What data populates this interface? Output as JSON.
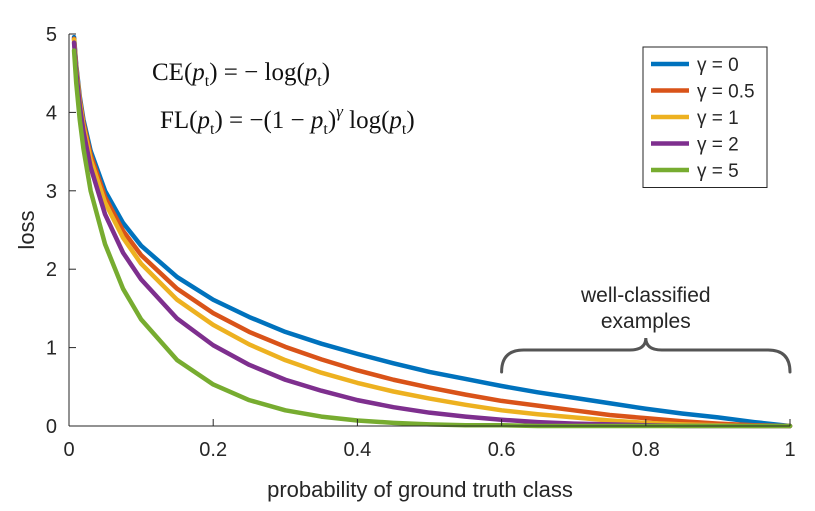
{
  "chart_data": {
    "type": "line",
    "title": "",
    "xlabel": "probability of ground truth class",
    "ylabel": "loss",
    "xlim": [
      0,
      1
    ],
    "ylim": [
      0,
      5
    ],
    "xticks": [
      0,
      0.2,
      0.4,
      0.6,
      0.8,
      1
    ],
    "xtick_labels": [
      "0",
      "0.2",
      "0.4",
      "0.6",
      "0.8",
      "1"
    ],
    "yticks": [
      0,
      1,
      2,
      3,
      4,
      5
    ],
    "ytick_labels": [
      "0",
      "1",
      "2",
      "3",
      "4",
      "5"
    ],
    "grid": false,
    "legend_position": "top-right",
    "formula_lines": [
      "CE(pt) = − log(pt)",
      "FL(pt) = −(1 − pt)γ log(pt)"
    ],
    "annotation": {
      "lines": [
        "well-classified",
        "examples"
      ],
      "x_range": [
        0.6,
        1.0
      ]
    },
    "x": [
      0.007,
      0.01,
      0.015,
      0.02,
      0.03,
      0.05,
      0.075,
      0.1,
      0.15,
      0.2,
      0.25,
      0.3,
      0.35,
      0.4,
      0.45,
      0.5,
      0.55,
      0.6,
      0.65,
      0.7,
      0.75,
      0.8,
      0.85,
      0.9,
      0.95,
      1.0
    ],
    "series": [
      {
        "name": "γ = 0",
        "gamma": 0,
        "color": "#0072BD",
        "values": [
          4.96,
          4.61,
          4.2,
          3.91,
          3.51,
          3.0,
          2.59,
          2.3,
          1.9,
          1.61,
          1.39,
          1.2,
          1.05,
          0.92,
          0.8,
          0.69,
          0.6,
          0.51,
          0.43,
          0.36,
          0.29,
          0.22,
          0.16,
          0.11,
          0.05,
          0.0
        ]
      },
      {
        "name": "γ = 0.5",
        "gamma": 0.5,
        "color": "#D95319",
        "values": [
          4.94,
          4.58,
          4.17,
          3.87,
          3.46,
          2.92,
          2.49,
          2.18,
          1.75,
          1.44,
          1.2,
          1.01,
          0.85,
          0.71,
          0.59,
          0.49,
          0.4,
          0.32,
          0.26,
          0.2,
          0.14,
          0.1,
          0.06,
          0.03,
          0.01,
          0.0
        ]
      },
      {
        "name": "γ = 1",
        "gamma": 1,
        "color": "#EDB120",
        "values": [
          4.93,
          4.56,
          4.14,
          3.83,
          3.4,
          2.85,
          2.4,
          2.07,
          1.61,
          1.29,
          1.04,
          0.84,
          0.68,
          0.55,
          0.44,
          0.35,
          0.27,
          0.2,
          0.15,
          0.11,
          0.07,
          0.04,
          0.02,
          0.01,
          0.0,
          0.0
        ]
      },
      {
        "name": "γ = 2",
        "gamma": 2,
        "color": "#7E2F8E",
        "values": [
          4.89,
          4.52,
          4.08,
          3.76,
          3.3,
          2.7,
          2.21,
          1.87,
          1.37,
          1.03,
          0.78,
          0.59,
          0.45,
          0.33,
          0.24,
          0.17,
          0.12,
          0.08,
          0.05,
          0.03,
          0.02,
          0.01,
          0.0,
          0.0,
          0.0,
          0.0
        ]
      },
      {
        "name": "γ = 5",
        "gamma": 5,
        "color": "#77AC30",
        "values": [
          4.79,
          4.38,
          3.9,
          3.54,
          3.0,
          2.32,
          1.75,
          1.36,
          0.84,
          0.53,
          0.33,
          0.2,
          0.12,
          0.07,
          0.04,
          0.02,
          0.01,
          0.01,
          0.0,
          0.0,
          0.0,
          0.0,
          0.0,
          0.0,
          0.0,
          0.0
        ]
      }
    ]
  }
}
